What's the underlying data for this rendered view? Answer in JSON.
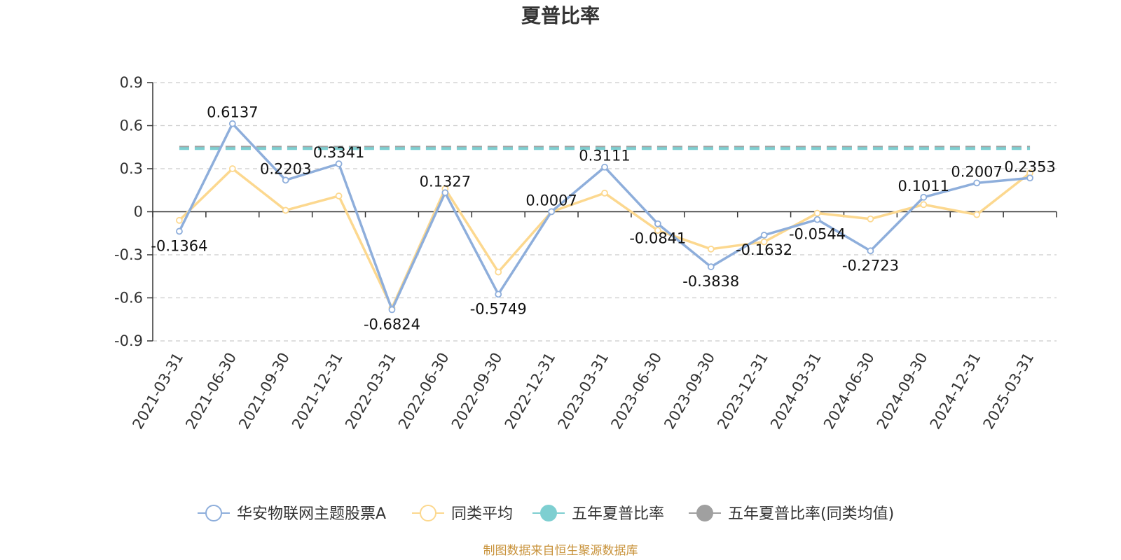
{
  "chart_data": {
    "type": "line",
    "title": "夏普比率",
    "categories": [
      "2021-03-31",
      "2021-06-30",
      "2021-09-30",
      "2021-12-31",
      "2022-03-31",
      "2022-06-30",
      "2022-09-30",
      "2022-12-31",
      "2023-03-31",
      "2023-06-30",
      "2023-09-30",
      "2023-12-31",
      "2024-03-31",
      "2024-06-30",
      "2024-09-30",
      "2024-12-31",
      "2025-03-31"
    ],
    "ylim": [
      -0.9,
      0.9
    ],
    "yticks": [
      "0.9",
      "0.6",
      "0.3",
      "0",
      "-0.3",
      "-0.6",
      "-0.9"
    ],
    "ytick_values": [
      0.9,
      0.6,
      0.3,
      0,
      -0.3,
      -0.6,
      -0.9
    ],
    "grid": true,
    "legend_position": "bottom",
    "series": [
      {
        "name": "华安物联网主题股票A",
        "color": "#8eaedb",
        "values": [
          -0.1364,
          0.6137,
          0.2203,
          0.3341,
          -0.6824,
          0.1327,
          -0.5749,
          0.0007,
          0.3111,
          -0.0841,
          -0.3838,
          -0.1632,
          -0.0544,
          -0.2723,
          0.1011,
          0.2007,
          0.2353
        ],
        "labels": [
          "-0.1364",
          "0.6137",
          "0.2203",
          "0.3341",
          "-0.6824",
          "0.1327",
          "-0.5749",
          "0.0007",
          "0.3111",
          "-0.0841",
          "-0.3838",
          "-0.1632",
          "-0.0544",
          "-0.2723",
          "0.1011",
          "0.2007",
          "0.2353"
        ]
      },
      {
        "name": "同类平均",
        "color": "#fcd88f",
        "values": [
          -0.06,
          0.3,
          0.01,
          0.11,
          -0.67,
          0.16,
          -0.42,
          0.0,
          0.13,
          -0.13,
          -0.26,
          -0.21,
          -0.01,
          -0.05,
          0.05,
          -0.02,
          0.27
        ]
      },
      {
        "name": "五年夏普比率",
        "color": "#7ecfd1",
        "values": [
          0.44,
          0.44,
          0.44,
          0.44,
          0.44,
          0.44,
          0.44,
          0.44,
          0.44,
          0.44,
          0.44,
          0.44,
          0.44,
          0.44,
          0.44,
          0.44,
          0.44
        ]
      },
      {
        "name": "五年夏普比率(同类均值)",
        "color": "#a0a0a0",
        "values": [
          0.45,
          0.45,
          0.45,
          0.45,
          0.45,
          0.45,
          0.45,
          0.45,
          0.45,
          0.45,
          0.45,
          0.45,
          0.45,
          0.45,
          0.45,
          0.45,
          0.45
        ]
      }
    ]
  },
  "source_text": "制图数据来自恒生聚源数据库"
}
